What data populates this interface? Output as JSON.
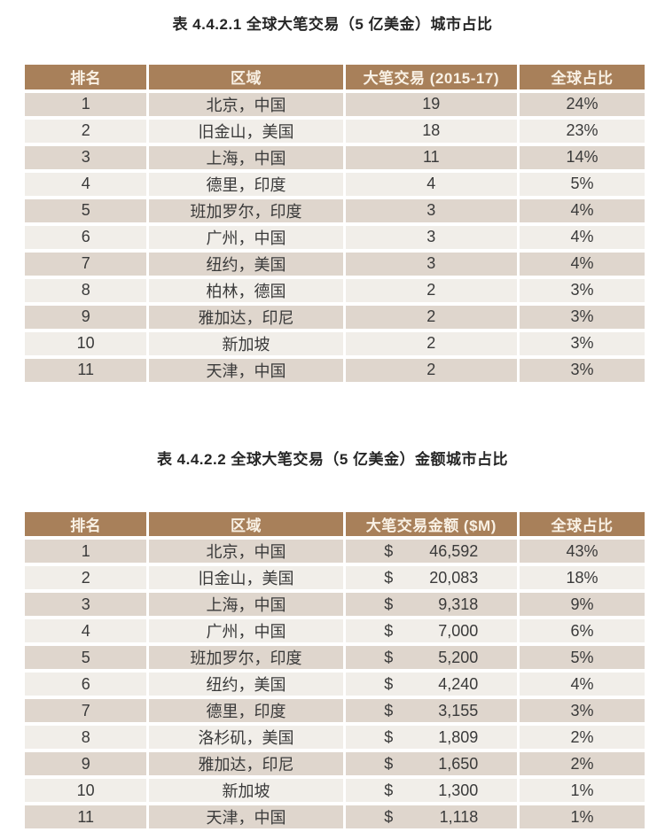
{
  "colors": {
    "header_bg": "#A8805A",
    "header_text": "#F9F1E5",
    "row_odd_bg": "#DFD6CD",
    "row_even_bg": "#F1EEE9",
    "body_text": "#3A3A3A",
    "title_text": "#262626",
    "separator": "#FFFFFF"
  },
  "table1": {
    "title": "表 4.4.2.1 全球大笔交易（5 亿美金）城市占比",
    "columns": [
      "排名",
      "区域",
      "大笔交易 (2015-17)",
      "全球占比"
    ],
    "rows": [
      {
        "rank": "1",
        "region": "北京，中国",
        "value": "19",
        "share": "24%"
      },
      {
        "rank": "2",
        "region": "旧金山，美国",
        "value": "18",
        "share": "23%"
      },
      {
        "rank": "3",
        "region": "上海，中国",
        "value": "11",
        "share": "14%"
      },
      {
        "rank": "4",
        "region": "德里，印度",
        "value": "4",
        "share": "5%"
      },
      {
        "rank": "5",
        "region": "班加罗尔，印度",
        "value": "3",
        "share": "4%"
      },
      {
        "rank": "6",
        "region": "广州，中国",
        "value": "3",
        "share": "4%"
      },
      {
        "rank": "7",
        "region": "纽约，美国",
        "value": "3",
        "share": "4%"
      },
      {
        "rank": "8",
        "region": "柏林，德国",
        "value": "2",
        "share": "3%"
      },
      {
        "rank": "9",
        "region": "雅加达，印尼",
        "value": "2",
        "share": "3%"
      },
      {
        "rank": "10",
        "region": "新加坡",
        "value": "2",
        "share": "3%"
      },
      {
        "rank": "11",
        "region": "天津，中国",
        "value": "2",
        "share": "3%"
      }
    ]
  },
  "table2": {
    "title": "表 4.4.2.2 全球大笔交易（5 亿美金）金额城市占比",
    "columns": [
      "排名",
      "区域",
      "大笔交易金额 ($M)",
      "全球占比"
    ],
    "currency_symbol": "$",
    "rows": [
      {
        "rank": "1",
        "region": "北京，中国",
        "amount": "46,592",
        "share": "43%"
      },
      {
        "rank": "2",
        "region": "旧金山，美国",
        "amount": "20,083",
        "share": "18%"
      },
      {
        "rank": "3",
        "region": "上海，中国",
        "amount": "9,318",
        "share": "9%"
      },
      {
        "rank": "4",
        "region": "广州，中国",
        "amount": "7,000",
        "share": "6%"
      },
      {
        "rank": "5",
        "region": "班加罗尔，印度",
        "amount": "5,200",
        "share": "5%"
      },
      {
        "rank": "6",
        "region": "纽约，美国",
        "amount": "4,240",
        "share": "4%"
      },
      {
        "rank": "7",
        "region": "德里，印度",
        "amount": "3,155",
        "share": "3%"
      },
      {
        "rank": "8",
        "region": "洛杉矶，美国",
        "amount": "1,809",
        "share": "2%"
      },
      {
        "rank": "9",
        "region": "雅加达，印尼",
        "amount": "1,650",
        "share": "2%"
      },
      {
        "rank": "10",
        "region": "新加坡",
        "amount": "1,300",
        "share": "1%"
      },
      {
        "rank": "11",
        "region": "天津，中国",
        "amount": "1,118",
        "share": "1%"
      }
    ]
  }
}
